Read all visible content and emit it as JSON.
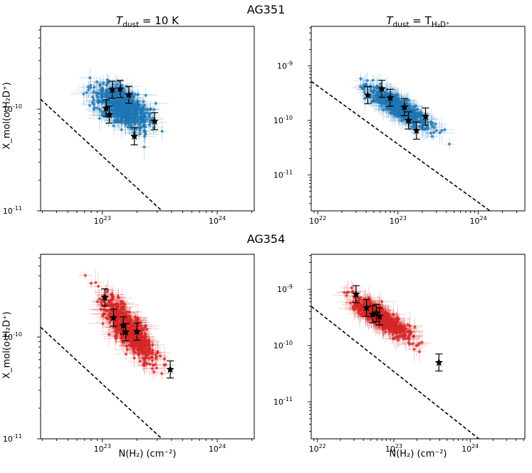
{
  "figure": {
    "section_top": "AG351",
    "section_bottom": "AG354",
    "col_titles": [
      {
        "prefix": "T",
        "sub": "dust",
        "rest": " = 10 K"
      },
      {
        "prefix": "T",
        "sub": "dust",
        "rest": " = T",
        "sub2": "H₂D⁺"
      }
    ],
    "xlabel": "N(H₂) (cm⁻²)",
    "ylabel": "X_mol(o-H₂D⁺)"
  },
  "chart_data": [
    {
      "type": "scatter",
      "panel": "AG351, T_dust = 10 K",
      "x_scale": "log",
      "y_scale": "log",
      "xlim": [
        2.9e+22,
        2.1e+24
      ],
      "ylim": [
        1e-11,
        6.5e-10
      ],
      "x_ticks": [
        "10^23",
        "10^24"
      ],
      "y_ticks": [
        "10^-11",
        "10^-10"
      ],
      "color": "#1f77b4",
      "stars": [
        {
          "x": 1.08e+23,
          "y": 1.02e-10
        },
        {
          "x": 1.15e+23,
          "y": 8.8e-11
        },
        {
          "x": 1.22e+23,
          "y": 1.55e-10
        },
        {
          "x": 1.43e+23,
          "y": 1.58e-10
        },
        {
          "x": 1.7e+23,
          "y": 1.38e-10
        },
        {
          "x": 1.9e+23,
          "y": 5.4e-11
        },
        {
          "x": 2.85e+23,
          "y": 7.6e-11
        }
      ],
      "dashed_line": {
        "x": [
          2.9e+22,
          3.3e+23
        ],
        "y": [
          1.25e-10,
          1e-11
        ]
      }
    },
    {
      "type": "scatter",
      "panel": "AG351, T_dust = T_H2D+",
      "x_scale": "log",
      "y_scale": "log",
      "xlim": [
        8.3e+21,
        3.8e+24
      ],
      "ylim": [
        2.2e-12,
        5.3e-09
      ],
      "x_ticks": [
        "10^22",
        "10^23",
        "10^24"
      ],
      "y_ticks": [
        "10^-11",
        "10^-10",
        "10^-9"
      ],
      "color": "#1f77b4",
      "stars": [
        {
          "x": 4.2e+22,
          "y": 2.9e-10
        },
        {
          "x": 6.3e+22,
          "y": 3.8e-10
        },
        {
          "x": 8e+22,
          "y": 2.6e-10
        },
        {
          "x": 1.2e+23,
          "y": 1.75e-10
        },
        {
          "x": 1.35e+23,
          "y": 1e-10
        },
        {
          "x": 1.7e+23,
          "y": 6.5e-11
        },
        {
          "x": 2.2e+23,
          "y": 1.18e-10
        }
      ],
      "dashed_line": {
        "x": [
          8.3e+21,
          1.4e+24
        ],
        "y": [
          5.2e-10,
          2.2e-12
        ]
      }
    },
    {
      "type": "scatter",
      "panel": "AG354, T_dust = 10 K",
      "x_scale": "log",
      "y_scale": "log",
      "xlim": [
        2.9e+22,
        2.1e+24
      ],
      "ylim": [
        1e-11,
        6.5e-10
      ],
      "x_ticks": [
        "10^23",
        "10^24"
      ],
      "y_ticks": [
        "10^-11",
        "10^-10"
      ],
      "color": "#d62728",
      "stars": [
        {
          "x": 1.05e+23,
          "y": 2.45e-10
        },
        {
          "x": 1.25e+23,
          "y": 1.55e-10
        },
        {
          "x": 1.52e+23,
          "y": 1.3e-10
        },
        {
          "x": 1.6e+23,
          "y": 1.12e-10
        },
        {
          "x": 2e+23,
          "y": 1.13e-10
        },
        {
          "x": 3.9e+23,
          "y": 4.8e-11
        }
      ],
      "dashed_line": {
        "x": [
          2.9e+22,
          3.3e+23
        ],
        "y": [
          1.25e-10,
          1e-11
        ]
      }
    },
    {
      "type": "scatter",
      "panel": "AG354, T_dust = T_H2D+",
      "x_scale": "log",
      "y_scale": "log",
      "xlim": [
        8.3e+21,
        5.2e+24
      ],
      "ylim": [
        2.2e-12,
        4.2e-09
      ],
      "x_ticks": [
        "10^22",
        "10^23",
        "10^24"
      ],
      "y_ticks": [
        "10^-11",
        "10^-10",
        "10^-9"
      ],
      "color": "#d62728",
      "stars": [
        {
          "x": 3.2e+22,
          "y": 8.2e-10
        },
        {
          "x": 4.4e+22,
          "y": 4.7e-10
        },
        {
          "x": 5.3e+22,
          "y": 3.6e-10
        },
        {
          "x": 5.9e+22,
          "y": 3.8e-10
        },
        {
          "x": 6.5e+22,
          "y": 3.3e-10
        },
        {
          "x": 3.9e+23,
          "y": 5e-11
        }
      ],
      "dashed_line": {
        "x": [
          8.3e+21,
          1.3e+24
        ],
        "y": [
          5e-10,
          2.2e-12
        ]
      }
    }
  ]
}
